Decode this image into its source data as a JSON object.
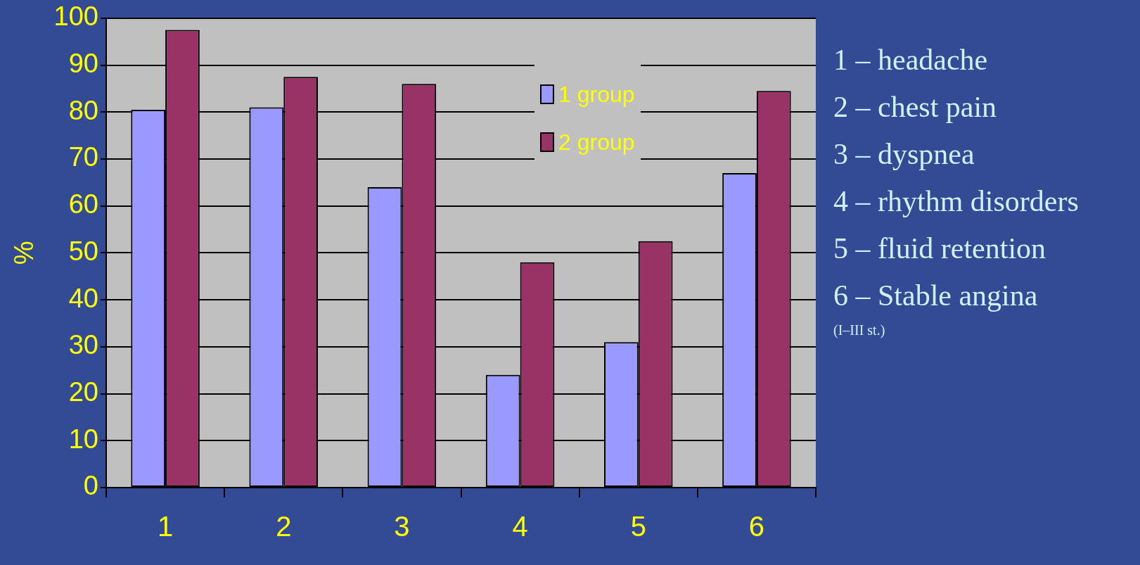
{
  "chart_data": {
    "type": "bar",
    "ylabel": "%",
    "categories": [
      "1",
      "2",
      "3",
      "4",
      "5",
      "6"
    ],
    "series": [
      {
        "name": "1 group",
        "color": "#9999ff",
        "values": [
          80.5,
          81,
          64,
          24,
          31,
          67
        ]
      },
      {
        "name": "2 group",
        "color": "#993366",
        "values": [
          97.5,
          87.5,
          86,
          48,
          52.5,
          84.5
        ]
      }
    ],
    "ylim": [
      0,
      100
    ],
    "yticks": [
      0,
      10,
      20,
      30,
      40,
      50,
      60,
      70,
      80,
      90,
      100
    ],
    "grid": "y",
    "legend": "top right",
    "annotations": [
      "1 – headache",
      "2 – chest pain",
      "3 – dyspnea",
      "4 – rhythm disorders",
      "5 – fluid retention",
      "6 – Stable angina",
      "(I–III st.)"
    ]
  }
}
